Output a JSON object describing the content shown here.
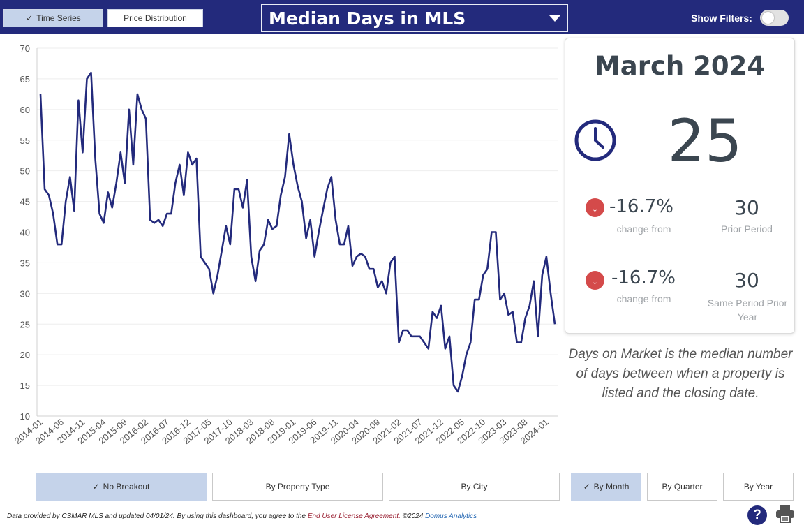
{
  "tabs": {
    "time_series": "Time Series",
    "price_distribution": "Price Distribution"
  },
  "metric": {
    "selected": "Median Days in MLS"
  },
  "filters": {
    "label": "Show Filters:",
    "enabled": false
  },
  "card": {
    "period": "March 2024",
    "value": "25",
    "change1": {
      "pct": "-16.7%",
      "label": "change from",
      "compare_value": "30",
      "compare_label": "Prior Period"
    },
    "change2": {
      "pct": "-16.7%",
      "label": "change from",
      "compare_value": "30",
      "compare_label": "Same Period Prior Year"
    }
  },
  "description": "Days on Market is the median number of days between when a property is listed and the closing date.",
  "breakout_buttons": [
    "No Breakout",
    "By Property Type",
    "By City"
  ],
  "period_buttons": [
    "By Month",
    "By Quarter",
    "By Year"
  ],
  "footer": {
    "text": "Data provided by CSMAR MLS and updated 04/01/24.  By using this dashboard, you agree to the",
    "eula": "End User License Agreement.",
    "copyright": "©2024",
    "brand": "Domus Analytics"
  },
  "help_label": "?",
  "colors": {
    "header": "#232a7c",
    "line": "#232a7c",
    "active": "#c5d3ea",
    "down": "#d44a4a"
  },
  "icons": {
    "clock": "clock-icon",
    "down": "arrow-down-icon",
    "help": "help-icon",
    "print": "printer-icon"
  },
  "chart_data": {
    "type": "line",
    "title": "",
    "xlabel": "",
    "ylabel": "",
    "ylim": [
      10,
      70
    ],
    "yticks": [
      10,
      15,
      20,
      25,
      30,
      35,
      40,
      45,
      50,
      55,
      60,
      65,
      70
    ],
    "xtick_labels": [
      "2014-01",
      "2014-06",
      "2014-11",
      "2015-04",
      "2015-09",
      "2016-02",
      "2016-07",
      "2016-12",
      "2017-05",
      "2017-10",
      "2018-03",
      "2018-08",
      "2019-01",
      "2019-06",
      "2019-11",
      "2020-04",
      "2020-09",
      "2021-02",
      "2021-07",
      "2021-12",
      "2022-05",
      "2022-10",
      "2023-03",
      "2023-08",
      "2024-01"
    ],
    "start": "2014-01",
    "grid": true,
    "series": [
      {
        "values": [
          62.5,
          47,
          46,
          43,
          38,
          38,
          45,
          49,
          43.5,
          61.5,
          53,
          65,
          66,
          52,
          43,
          41.5,
          46.5,
          44,
          48,
          53,
          48,
          60,
          51,
          62.5,
          60,
          58.5,
          42,
          41.5,
          42,
          41,
          43,
          43,
          48,
          51,
          46,
          53,
          51,
          52,
          36,
          35,
          34,
          30,
          33,
          37,
          41,
          38,
          47,
          47,
          44,
          48.5,
          36,
          32,
          37,
          38,
          42,
          40.5,
          41,
          46,
          49,
          56,
          51,
          47.5,
          45,
          39,
          42,
          36,
          40,
          43.5,
          47,
          49,
          42,
          38,
          38,
          41,
          34.5,
          36,
          36.5,
          36,
          34,
          34,
          31,
          32,
          30,
          35,
          36,
          22,
          24,
          24,
          23,
          23,
          23,
          22,
          21,
          27,
          26,
          28,
          21,
          23,
          15,
          14,
          16.5,
          20,
          22,
          29,
          29,
          33,
          34,
          40,
          40,
          29,
          30,
          26.5,
          27,
          22,
          22,
          26,
          28,
          32,
          23,
          33,
          36,
          30,
          25
        ]
      }
    ]
  }
}
